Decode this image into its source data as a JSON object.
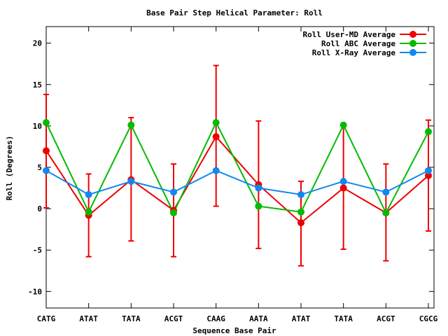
{
  "chart_data": {
    "type": "line",
    "title": "Base Pair Step Helical Parameter: Roll",
    "xlabel": "Sequence Base Pair",
    "ylabel": "Roll (Degrees)",
    "categories": [
      "CATG",
      "ATAT",
      "TATA",
      "ACGT",
      "CAAG",
      "AATA",
      "ATAT",
      "TATA",
      "ACGT",
      "CGCG"
    ],
    "ylim": [
      -12,
      22
    ],
    "yticks": [
      -10,
      -5,
      0,
      5,
      10,
      15,
      20
    ],
    "ytick_labels": [
      "-10",
      "-5",
      "0",
      "5",
      "10",
      "15",
      "20"
    ],
    "grid": false,
    "legend_position": "top-right",
    "series": [
      {
        "name": "Roll User-MD Average",
        "color": "#ee0000",
        "values": [
          7.0,
          -0.8,
          3.5,
          -0.2,
          8.7,
          2.9,
          -1.7,
          2.5,
          -0.5,
          4.0
        ],
        "error_low": [
          0.1,
          -5.8,
          -3.9,
          -5.8,
          0.3,
          -4.8,
          -6.9,
          -4.9,
          -6.3,
          -2.7
        ],
        "error_high": [
          13.8,
          4.2,
          11.0,
          5.4,
          17.3,
          10.6,
          3.3,
          10.1,
          5.4,
          10.7
        ]
      },
      {
        "name": "Roll ABC Average",
        "color": "#00bb00",
        "values": [
          10.4,
          -0.4,
          10.1,
          -0.5,
          10.4,
          0.3,
          -0.4,
          10.1,
          -0.5,
          9.3
        ]
      },
      {
        "name": "Roll X-Ray Average",
        "color": "#1188ee",
        "values": [
          4.6,
          1.7,
          3.3,
          2.0,
          4.6,
          2.5,
          1.7,
          3.3,
          2.0,
          4.6
        ]
      }
    ]
  }
}
